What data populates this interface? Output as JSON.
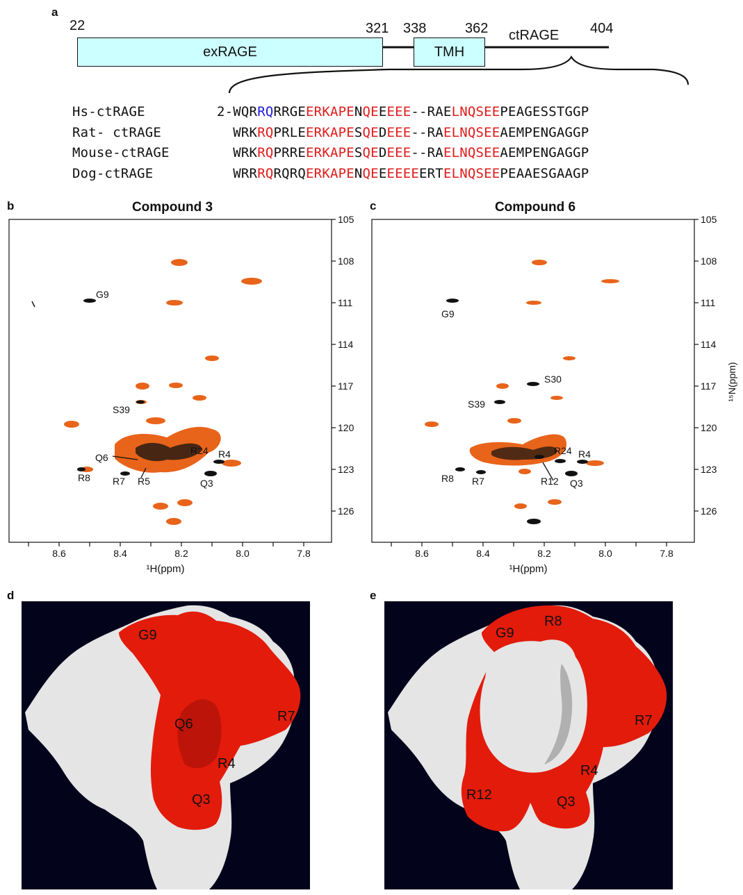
{
  "panel_a": {
    "label": "a",
    "positions": {
      "p22": "22",
      "p321": "321",
      "p338": "338",
      "p362": "362",
      "p404": "404"
    },
    "domains": {
      "ex": "exRAGE",
      "tmh": "TMH",
      "ct": "ctRAGE"
    },
    "sequences": [
      {
        "name": "Hs-ctRAGE",
        "segments": [
          {
            "t": "2-WQR",
            "c": "k"
          },
          {
            "t": "RQ",
            "c": "b"
          },
          {
            "t": "RRGE",
            "c": "k"
          },
          {
            "t": "ERKAPE",
            "c": "r"
          },
          {
            "t": "N",
            "c": "k"
          },
          {
            "t": "QE",
            "c": "r"
          },
          {
            "t": "E",
            "c": "k"
          },
          {
            "t": "EEE",
            "c": "r"
          },
          {
            "t": "--RAE",
            "c": "k"
          },
          {
            "t": "LNQSEE",
            "c": "r"
          },
          {
            "t": "PEAGESSTGGP",
            "c": "k"
          }
        ]
      },
      {
        "name": "Rat- ctRAGE",
        "segments": [
          {
            "t": "  WRK",
            "c": "k"
          },
          {
            "t": "RQ",
            "c": "r"
          },
          {
            "t": "PRLE",
            "c": "k"
          },
          {
            "t": "ERKAPE",
            "c": "r"
          },
          {
            "t": "S",
            "c": "k"
          },
          {
            "t": "QE",
            "c": "r"
          },
          {
            "t": "D",
            "c": "k"
          },
          {
            "t": "EEE",
            "c": "r"
          },
          {
            "t": "--RA",
            "c": "k"
          },
          {
            "t": "ELNQSEE",
            "c": "r"
          },
          {
            "t": "AEMPENGAGGP",
            "c": "k"
          }
        ]
      },
      {
        "name": "Mouse-ctRAGE",
        "segments": [
          {
            "t": "  WRK",
            "c": "k"
          },
          {
            "t": "RQ",
            "c": "r"
          },
          {
            "t": "PRRE",
            "c": "k"
          },
          {
            "t": "ERKAPE",
            "c": "r"
          },
          {
            "t": "S",
            "c": "k"
          },
          {
            "t": "QE",
            "c": "r"
          },
          {
            "t": "D",
            "c": "k"
          },
          {
            "t": "EEE",
            "c": "r"
          },
          {
            "t": "--RA",
            "c": "k"
          },
          {
            "t": "ELNQSEE",
            "c": "r"
          },
          {
            "t": "AEMPENGAGGP",
            "c": "k"
          }
        ]
      },
      {
        "name": "Dog-ctRAGE",
        "segments": [
          {
            "t": "  WRR",
            "c": "k"
          },
          {
            "t": "RQ",
            "c": "r"
          },
          {
            "t": "RQRQ",
            "c": "k"
          },
          {
            "t": "ERKAPE",
            "c": "r"
          },
          {
            "t": "N",
            "c": "k"
          },
          {
            "t": "QE",
            "c": "r"
          },
          {
            "t": "E",
            "c": "k"
          },
          {
            "t": "EEEE",
            "c": "r"
          },
          {
            "t": "ERT",
            "c": "k"
          },
          {
            "t": "ELNQSEE",
            "c": "r"
          },
          {
            "t": "PEAAESGAAGP",
            "c": "k"
          }
        ]
      }
    ]
  },
  "panel_b": {
    "label": "b",
    "title": "Compound 3",
    "xlabel": "¹H(ppm)",
    "xticks": [
      "8.6",
      "8.4",
      "8.2",
      "8.0",
      "7.8"
    ],
    "yticks": [
      "105",
      "108",
      "111",
      "114",
      "117",
      "120",
      "123",
      "126"
    ],
    "annotations": [
      "G9",
      "S39",
      "Q6",
      "R24",
      "R4",
      "R8",
      "R7",
      "R5",
      "Q3"
    ]
  },
  "panel_c": {
    "label": "c",
    "title": "Compound 6",
    "xlabel": "¹H(ppm)",
    "ylabel": "¹⁵N(ppm)",
    "xticks": [
      "8.6",
      "8.4",
      "8.2",
      "8.0",
      "7.8"
    ],
    "yticks": [
      "105",
      "108",
      "111",
      "114",
      "117",
      "120",
      "123",
      "126"
    ],
    "annotations": [
      "G9",
      "S30",
      "S39",
      "R24",
      "R4",
      "R8",
      "R7",
      "R12",
      "Q3"
    ]
  },
  "panel_d": {
    "label": "d",
    "residues": [
      "G9",
      "Q6",
      "R7",
      "R4",
      "Q3"
    ]
  },
  "panel_e": {
    "label": "e",
    "residues": [
      "G9",
      "R8",
      "R7",
      "R4",
      "R12",
      "Q3"
    ]
  },
  "colors": {
    "highlight": "#e31b0b",
    "surface_bg": "#03031c",
    "orange": "#e8641a",
    "cyan_box": "#ccffff"
  }
}
